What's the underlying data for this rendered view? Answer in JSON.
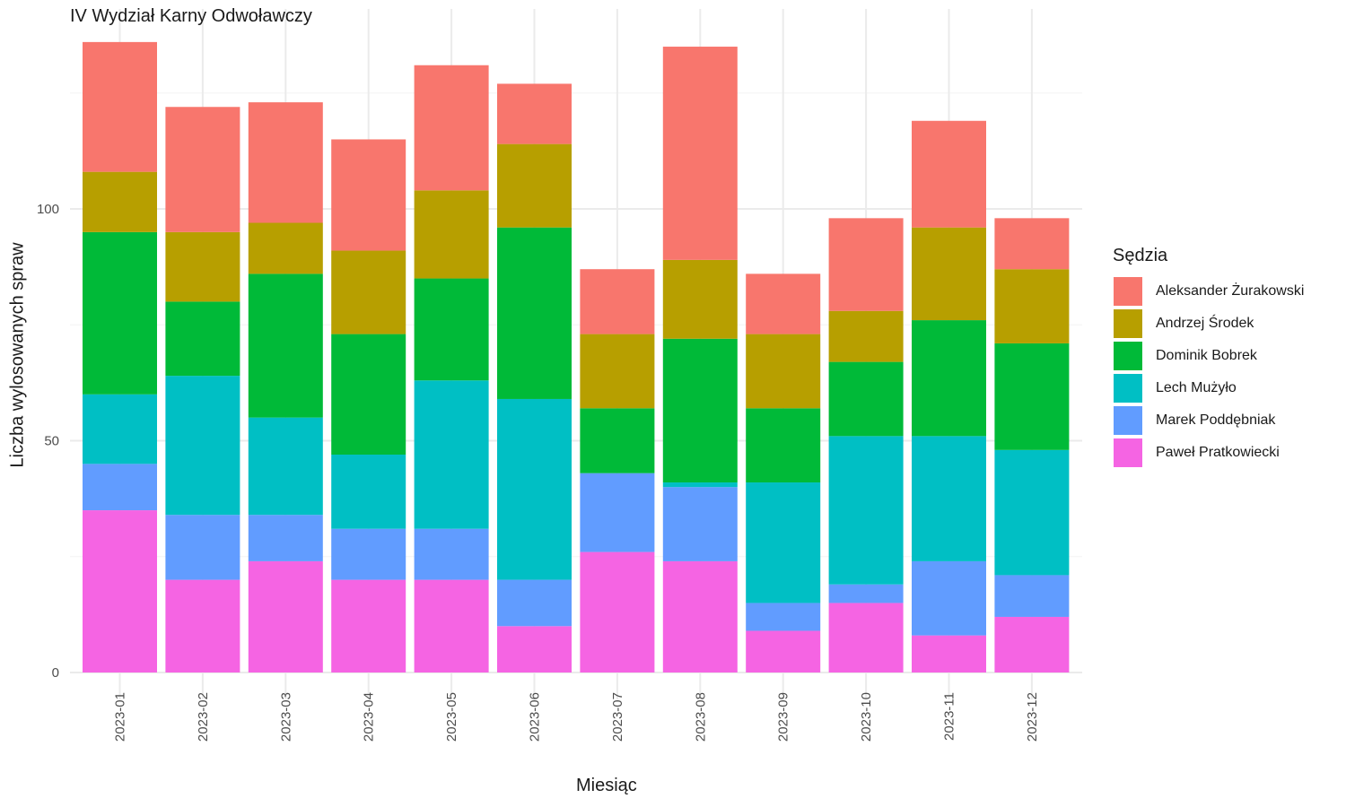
{
  "chart_data": {
    "type": "bar",
    "stacked": true,
    "title": "IV Wydział Karny Odwoławczy",
    "xlabel": "Miesiąc",
    "ylabel": "Liczba wylosowanych spraw",
    "ylim": [
      0,
      140
    ],
    "yticks": [
      "0",
      "50",
      "100"
    ],
    "grid": true,
    "legend_title": "Sędzia",
    "legend_position": "right",
    "categories": [
      "2023-01",
      "2023-02",
      "2023-03",
      "2023-04",
      "2023-05",
      "2023-06",
      "2023-07",
      "2023-08",
      "2023-09",
      "2023-10",
      "2023-11",
      "2023-12"
    ],
    "series": [
      {
        "name": "Paweł Pratkowiecki",
        "color": "#F564E3",
        "values": [
          35,
          20,
          24,
          20,
          20,
          10,
          26,
          24,
          9,
          15,
          8,
          12
        ]
      },
      {
        "name": "Marek Poddębniak",
        "color": "#619CFF",
        "values": [
          10,
          14,
          10,
          11,
          11,
          10,
          17,
          16,
          6,
          4,
          16,
          9
        ]
      },
      {
        "name": "Lech Mużyło",
        "color": "#00BFC4",
        "values": [
          15,
          30,
          21,
          16,
          32,
          39,
          0,
          1,
          26,
          32,
          27,
          27
        ]
      },
      {
        "name": "Dominik Bobrek",
        "color": "#00BA38",
        "values": [
          35,
          16,
          31,
          26,
          22,
          37,
          14,
          31,
          16,
          16,
          25,
          23
        ]
      },
      {
        "name": "Andrzej Środek",
        "color": "#B79F00",
        "values": [
          13,
          15,
          11,
          18,
          19,
          18,
          16,
          17,
          16,
          11,
          20,
          16
        ]
      },
      {
        "name": "Aleksander Żurakowski",
        "color": "#F8766D",
        "values": [
          28,
          27,
          26,
          24,
          27,
          13,
          14,
          46,
          13,
          20,
          23,
          11
        ]
      }
    ],
    "legend_order": [
      "Aleksander Żurakowski",
      "Andrzej Środek",
      "Dominik Bobrek",
      "Lech Mużyło",
      "Marek Poddębniak",
      "Paweł Pratkowiecki"
    ]
  }
}
